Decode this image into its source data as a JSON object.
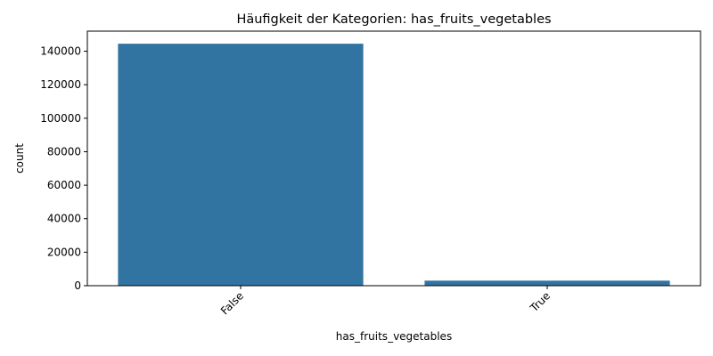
{
  "chart_data": {
    "type": "bar",
    "title": "Häufigkeit der Kategorien: has_fruits_vegetables",
    "xlabel": "has_fruits_vegetables",
    "ylabel": "count",
    "categories": [
      "False",
      "True"
    ],
    "values": [
      144500,
      3000
    ],
    "ylim": [
      0,
      152000
    ],
    "yticks": [
      0,
      20000,
      40000,
      60000,
      80000,
      100000,
      120000,
      140000
    ],
    "ytick_labels": [
      "0",
      "20000",
      "40000",
      "60000",
      "80000",
      "100000",
      "120000",
      "140000"
    ],
    "bar_color": "#3274a1",
    "grid": false,
    "x_tick_rotation": 45
  }
}
